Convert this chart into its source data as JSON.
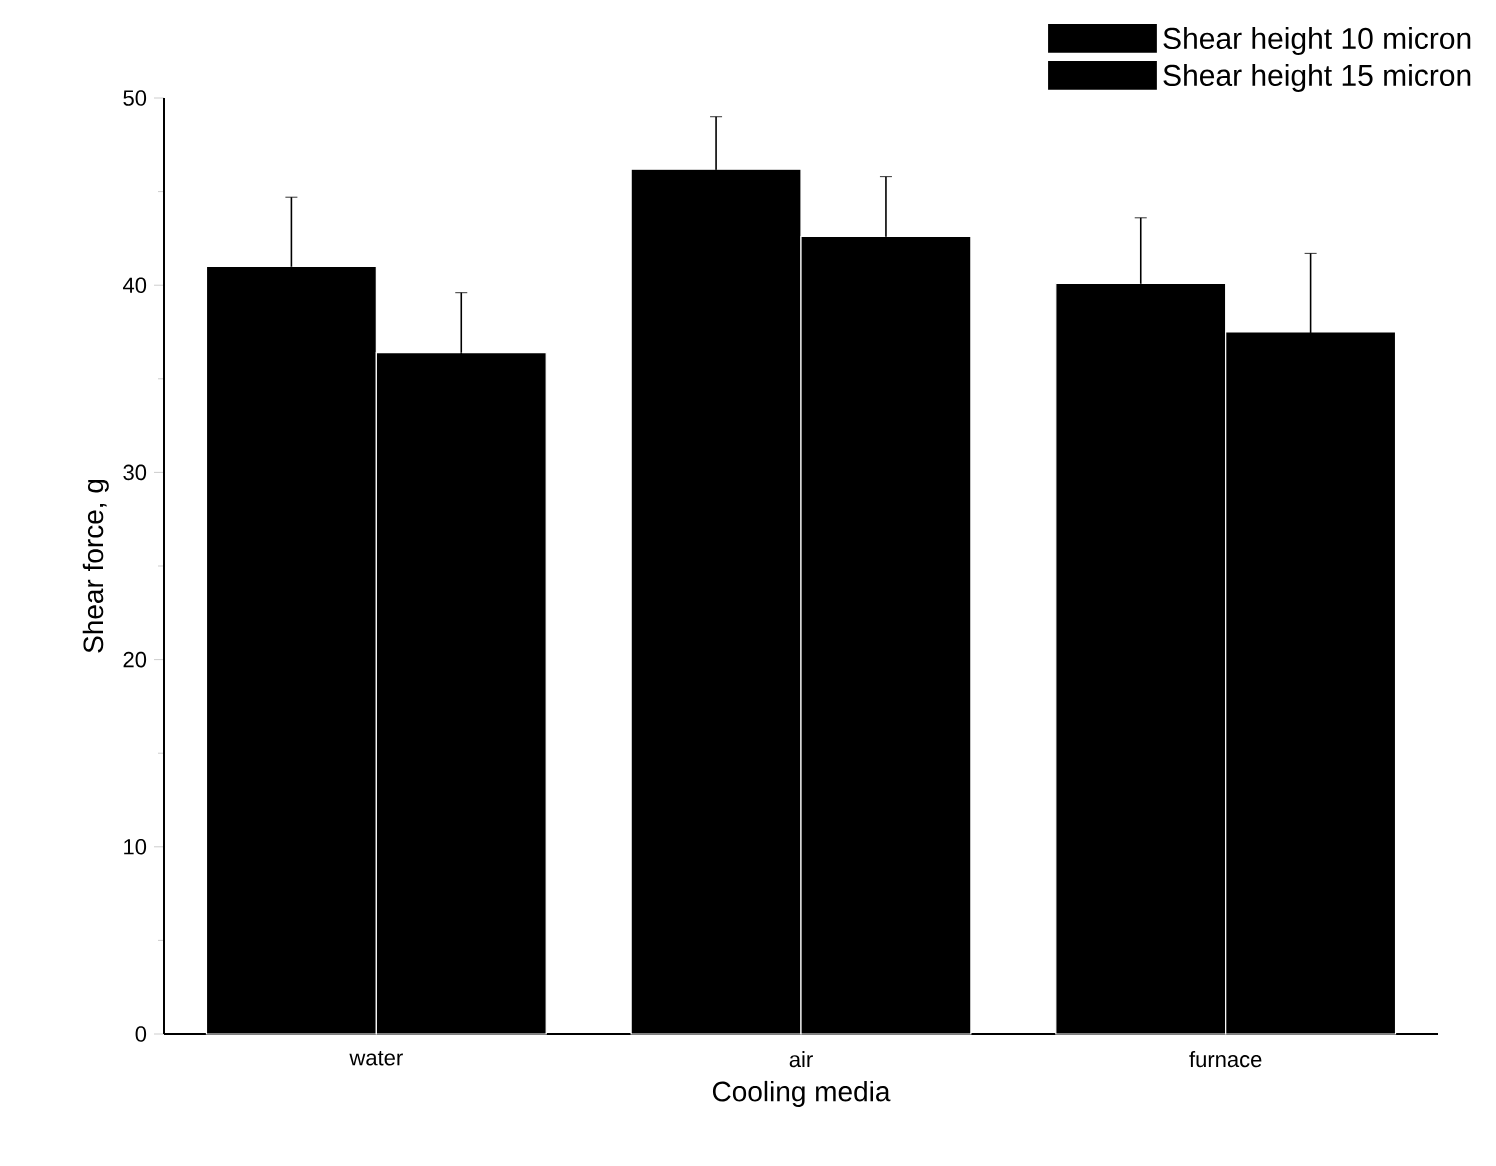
{
  "chart_data": {
    "type": "bar",
    "xlabel": "Cooling media",
    "ylabel": "Shear force, g",
    "categories": [
      "water",
      "air",
      "furnace"
    ],
    "series": [
      {
        "name": "Shear height 10 micron",
        "color": "#000000",
        "values": [
          41.0,
          46.2,
          40.1
        ],
        "errors": [
          3.7,
          2.8,
          3.5
        ]
      },
      {
        "name": "Shear height 15 micron",
        "color": "#000000",
        "values": [
          36.4,
          42.6,
          37.5
        ],
        "errors": [
          3.2,
          3.2,
          4.2
        ]
      }
    ],
    "ylim": [
      0,
      50
    ],
    "yticks": [
      0,
      10,
      20,
      30,
      40,
      50
    ],
    "legend": "top right",
    "grid": false
  }
}
